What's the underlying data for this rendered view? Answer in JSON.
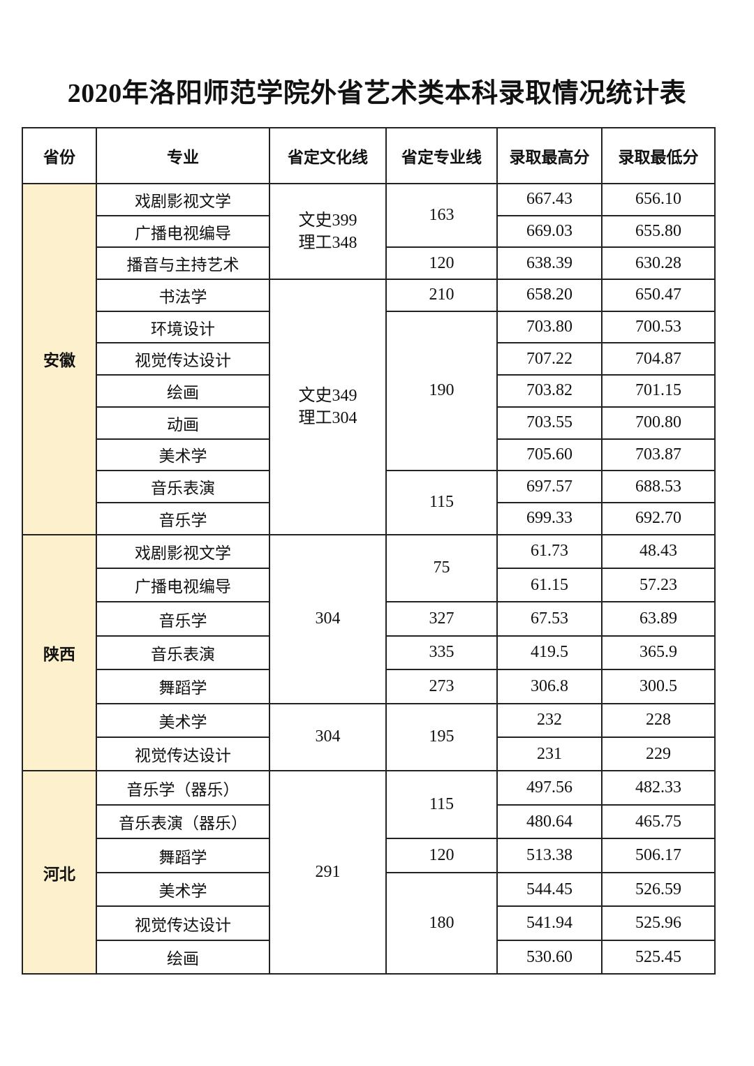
{
  "title": "2020年洛阳师范学院外省艺术类本科录取情况统计表",
  "headers": [
    "省份",
    "专业",
    "省定文化线",
    "省定专业线",
    "录取最高分",
    "录取最低分"
  ],
  "colors": {
    "province_bg": "#fdf0cc",
    "border": "#222222"
  },
  "provinces": [
    {
      "name": "安徽",
      "culture_lines": [
        [
          "文史399",
          "理工348"
        ],
        [
          "文史349",
          "理工304"
        ]
      ],
      "specialty_lines": [
        "163",
        "120",
        "210",
        "190",
        "115"
      ],
      "rows": [
        {
          "major": "戏剧影视文学",
          "max": "667.43",
          "min": "656.10"
        },
        {
          "major": "广播电视编导",
          "max": "669.03",
          "min": "655.80"
        },
        {
          "major": "播音与主持艺术",
          "max": "638.39",
          "min": "630.28"
        },
        {
          "major": "书法学",
          "max": "658.20",
          "min": "650.47"
        },
        {
          "major": "环境设计",
          "max": "703.80",
          "min": "700.53"
        },
        {
          "major": "视觉传达设计",
          "max": "707.22",
          "min": "704.87"
        },
        {
          "major": "绘画",
          "max": "703.82",
          "min": "701.15"
        },
        {
          "major": "动画",
          "max": "703.55",
          "min": "700.80"
        },
        {
          "major": "美术学",
          "max": "705.60",
          "min": "703.87"
        },
        {
          "major": "音乐表演",
          "max": "697.57",
          "min": "688.53"
        },
        {
          "major": "音乐学",
          "max": "699.33",
          "min": "692.70"
        }
      ]
    },
    {
      "name": "陕西",
      "culture_lines": [
        "304",
        "304"
      ],
      "specialty_lines": [
        "75",
        "327",
        "335",
        "273",
        "195"
      ],
      "rows": [
        {
          "major": "戏剧影视文学",
          "max": "61.73",
          "min": "48.43"
        },
        {
          "major": "广播电视编导",
          "max": "61.15",
          "min": "57.23"
        },
        {
          "major": "音乐学",
          "max": "67.53",
          "min": "63.89"
        },
        {
          "major": "音乐表演",
          "max": "419.5",
          "min": "365.9"
        },
        {
          "major": "舞蹈学",
          "max": "306.8",
          "min": "300.5"
        },
        {
          "major": "美术学",
          "max": "232",
          "min": "228"
        },
        {
          "major": "视觉传达设计",
          "max": "231",
          "min": "229"
        }
      ]
    },
    {
      "name": "河北",
      "culture_lines": [
        "291"
      ],
      "specialty_lines": [
        "115",
        "120",
        "180"
      ],
      "rows": [
        {
          "major": "音乐学（器乐）",
          "max": "497.56",
          "min": "482.33"
        },
        {
          "major": "音乐表演（器乐）",
          "max": "480.64",
          "min": "465.75"
        },
        {
          "major": "舞蹈学",
          "max": "513.38",
          "min": "506.17"
        },
        {
          "major": "美术学",
          "max": "544.45",
          "min": "526.59"
        },
        {
          "major": "视觉传达设计",
          "max": "541.94",
          "min": "525.96"
        },
        {
          "major": "绘画",
          "max": "530.60",
          "min": "525.45"
        }
      ]
    }
  ]
}
